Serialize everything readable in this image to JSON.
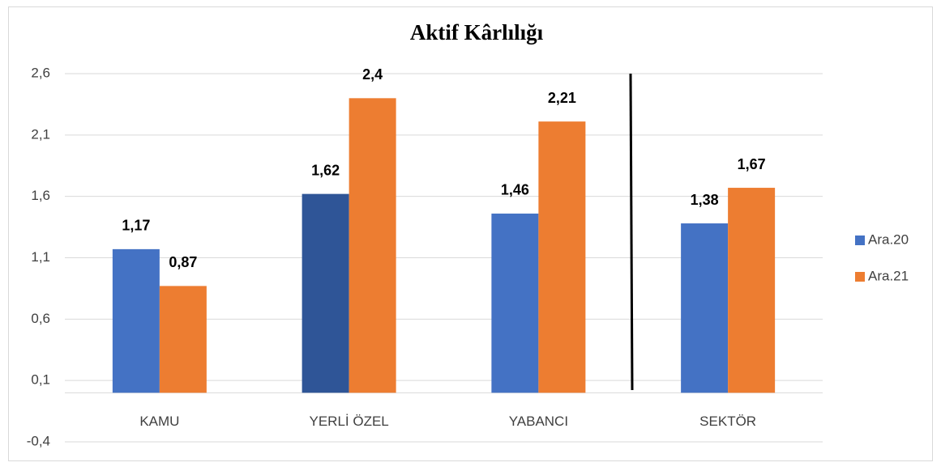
{
  "chart_data": {
    "type": "bar",
    "title": "Aktif Kârlılığı",
    "categories": [
      "KAMU",
      "YERLİ ÖZEL",
      "YABANCI",
      "SEKTÖR"
    ],
    "series": [
      {
        "name": "Ara.20",
        "color": "#4472c4",
        "point_colors": [
          "#4472c4",
          "#2f5597",
          "#4472c4",
          "#4472c4"
        ],
        "values": [
          1.17,
          1.62,
          1.46,
          1.38
        ],
        "value_labels": [
          "1,17",
          "1,62",
          "1,46",
          "1,38"
        ]
      },
      {
        "name": "Ara.21",
        "color": "#ed7d31",
        "values": [
          0.87,
          2.4,
          2.21,
          1.67
        ],
        "value_labels": [
          "0,87",
          "2,4",
          "2,21",
          "1,67"
        ]
      }
    ],
    "ylim": [
      -0.4,
      2.6
    ],
    "yticks": [
      {
        "value": -0.4,
        "label": "-0,4"
      },
      {
        "value": 0.1,
        "label": "0,1"
      },
      {
        "value": 0.6,
        "label": "0,6"
      },
      {
        "value": 1.1,
        "label": "1,1"
      },
      {
        "value": 1.6,
        "label": "1,6"
      },
      {
        "value": 2.1,
        "label": "2,1"
      },
      {
        "value": 2.6,
        "label": "2,6"
      }
    ],
    "grid": true,
    "legend": "right"
  }
}
